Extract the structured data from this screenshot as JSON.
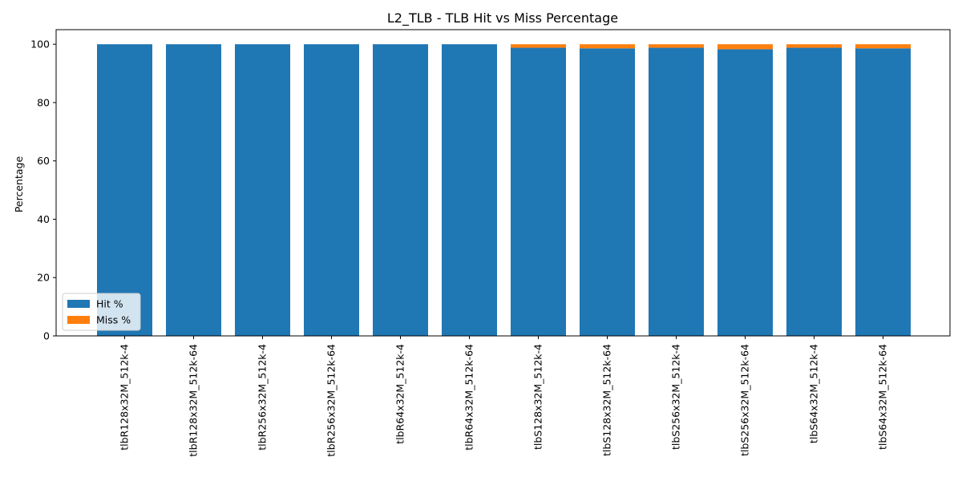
{
  "chart_data": {
    "type": "bar",
    "stacked": true,
    "title": "L2_TLB - TLB Hit vs Miss Percentage",
    "xlabel": "",
    "ylabel": "Percentage",
    "ylim": [
      0,
      105
    ],
    "yticks": [
      0,
      20,
      40,
      60,
      80,
      100
    ],
    "grid": false,
    "legend_position": "lower-left",
    "categories": [
      "tlbR128x32M_512k-4",
      "tlbR128x32M_512k-64",
      "tlbR256x32M_512k-4",
      "tlbR256x32M_512k-64",
      "tlbR64x32M_512k-4",
      "tlbR64x32M_512k-64",
      "tlbS128x32M_512k-4",
      "tlbS128x32M_512k-64",
      "tlbS256x32M_512k-4",
      "tlbS256x32M_512k-64",
      "tlbS64x32M_512k-4",
      "tlbS64x32M_512k-64"
    ],
    "series": [
      {
        "name": "Hit %",
        "color": "#1f77b4",
        "values": [
          100,
          100,
          100,
          100,
          100,
          100,
          98.8,
          98.6,
          98.8,
          98.3,
          98.8,
          98.6
        ]
      },
      {
        "name": "Miss %",
        "color": "#ff7f0e",
        "values": [
          0,
          0,
          0,
          0,
          0,
          0,
          1.2,
          1.4,
          1.2,
          1.7,
          1.2,
          1.4
        ]
      }
    ]
  }
}
